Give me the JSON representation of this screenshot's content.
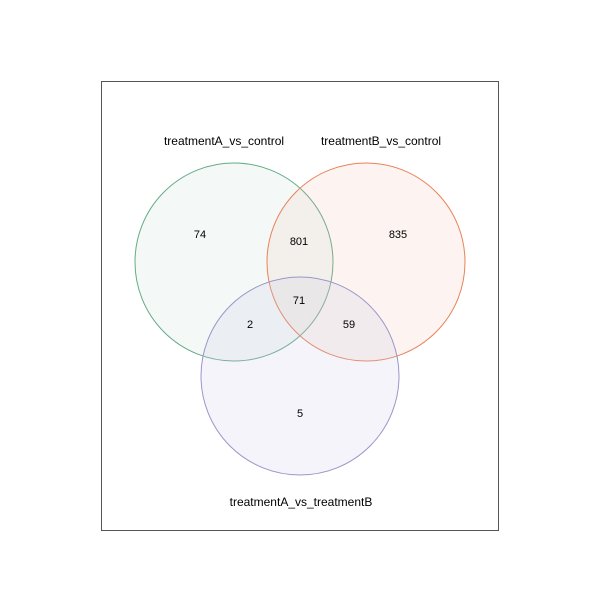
{
  "sets": [
    {
      "id": "a",
      "label": "treatmentA_vs_control",
      "stroke": "#66aa88",
      "fill": "#66aa88"
    },
    {
      "id": "b",
      "label": "treatmentB_vs_control",
      "stroke": "#e8825a",
      "fill": "#f4b7a0"
    },
    {
      "id": "c",
      "label": "treatmentA_vs_treatmentB",
      "stroke": "#9a96c8",
      "fill": "#c9c6e6"
    }
  ],
  "regions": {
    "only_a": "74",
    "a_and_b": "801",
    "only_b": "835",
    "a_b_c": "71",
    "a_and_c": "2",
    "b_and_c": "59",
    "only_c": "5"
  },
  "colors": {
    "frame": "#555555",
    "background": "#ffffff"
  }
}
